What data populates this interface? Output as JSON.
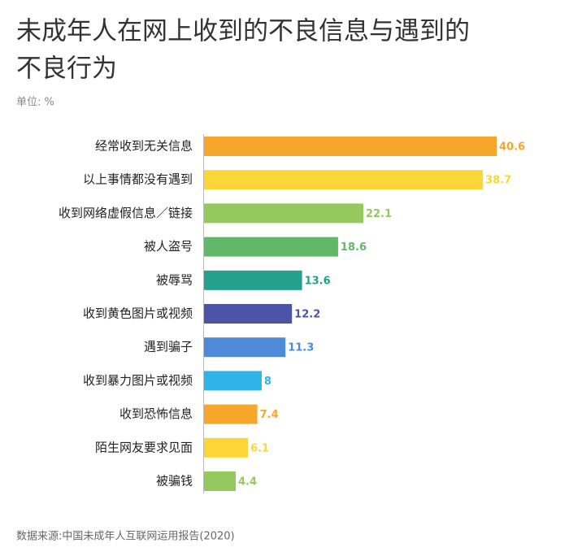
{
  "chart_data": {
    "type": "hbar",
    "title_lines": [
      "未成年人在网上收到的不良信息与遇到的",
      "不良行为"
    ],
    "subtitle": "单位: %",
    "source": "数据来源:中国未成年人互联网运用报告(2020)",
    "categories": [
      "经常收到无关信息",
      "以上事情都没有遇到",
      "收到网络虚假信息／链接",
      "被人盗号",
      "被辱骂",
      "收到黄色图片或视频",
      "遇到骗子",
      "收到暴力图片或视频",
      "收到恐怖信息",
      "陌生网友要求见面",
      "被骗钱"
    ],
    "values": [
      40.6,
      38.7,
      22.1,
      18.6,
      13.6,
      12.2,
      11.3,
      8,
      7.4,
      6.1,
      4.4
    ],
    "colors": [
      "#f6a62a",
      "#fad737",
      "#94c95e",
      "#62b866",
      "#26a08e",
      "#4c54a5",
      "#4f8ad9",
      "#2fb3e8",
      "#f6a62a",
      "#fad737",
      "#94c95e"
    ]
  }
}
